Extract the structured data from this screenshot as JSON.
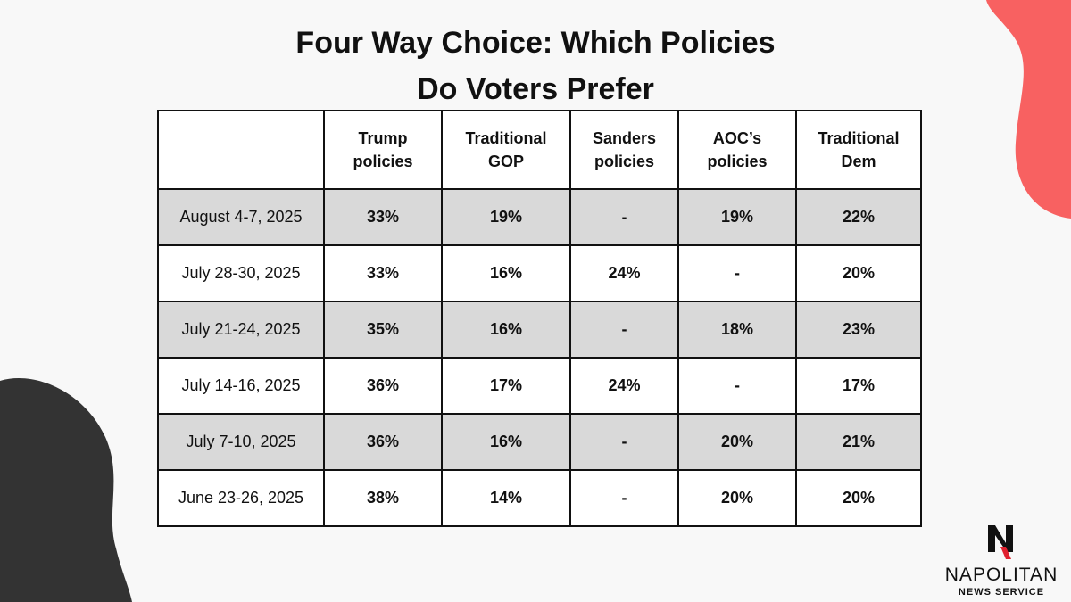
{
  "chart_data": {
    "type": "table",
    "title": "Four Way Choice: Which Policies Do Voters Prefer",
    "title_lines": [
      "Four Way Choice: Which Policies",
      "Do Voters Prefer"
    ],
    "columns": [
      [
        "Trump",
        "policies"
      ],
      [
        "Traditional",
        "GOP"
      ],
      [
        "Sanders",
        "policies"
      ],
      [
        "AOC’s",
        "policies"
      ],
      [
        "Traditional",
        "Dem"
      ]
    ],
    "rows": [
      {
        "date": "August 4-7, 2025",
        "values": [
          "33%",
          "19%",
          "-",
          "19%",
          "22%"
        ]
      },
      {
        "date": "July 28-30, 2025",
        "values": [
          "33%",
          "16%",
          "24%",
          "-",
          "20%"
        ]
      },
      {
        "date": "July 21-24, 2025",
        "values": [
          "35%",
          "16%",
          "-",
          "18%",
          "23%"
        ]
      },
      {
        "date": "July 14-16, 2025",
        "values": [
          "36%",
          "17%",
          "24%",
          "-",
          "17%"
        ]
      },
      {
        "date": "July 7-10, 2025",
        "values": [
          "36%",
          "16%",
          "-",
          "20%",
          "21%"
        ]
      },
      {
        "date": "June 23-26, 2025",
        "values": [
          "38%",
          "14%",
          "-",
          "20%",
          "20%"
        ]
      }
    ],
    "row_shading": [
      "shaded",
      "plain",
      "shaded",
      "plain",
      "shaded",
      "plain"
    ]
  },
  "brand": {
    "name": "NAPOLITAN",
    "subtitle": "NEWS SERVICE",
    "logo_letter": "N"
  },
  "colors": {
    "background": "#f8f8f8",
    "accent_red": "#f86161",
    "accent_dark": "#333333",
    "shaded_row": "#d9d9d9",
    "table_border": "#111111"
  }
}
